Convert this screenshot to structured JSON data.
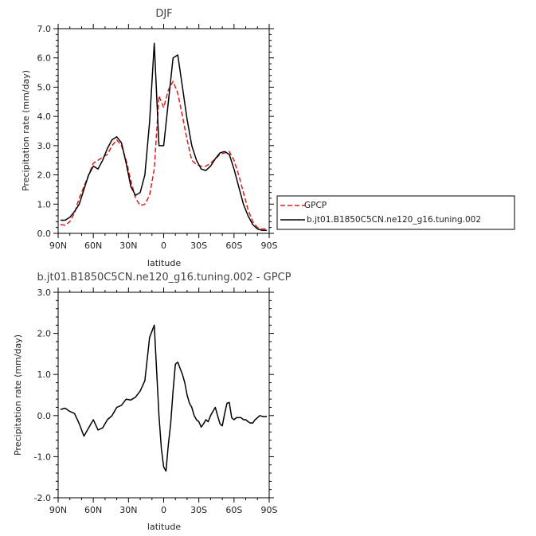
{
  "chart_data": [
    {
      "type": "line",
      "title": "DJF",
      "xlabel": "latitude",
      "ylabel": "Precipitation rate (mm/day)",
      "xlim": [
        90,
        -90
      ],
      "ylim": [
        0,
        7
      ],
      "xticks": [
        90,
        60,
        30,
        0,
        -30,
        -60,
        -90
      ],
      "xtick_labels": [
        "90N",
        "60N",
        "30N",
        "0",
        "30S",
        "60S",
        "90S"
      ],
      "yticks": [
        0,
        1,
        2,
        3,
        4,
        5,
        6,
        7
      ],
      "ytick_labels": [
        "0.0",
        "1.0",
        "2.0",
        "3.0",
        "4.0",
        "5.0",
        "6.0",
        "7.0"
      ],
      "legend_position": "right",
      "series": [
        {
          "name": "GPCP",
          "color": "#dd1c1c",
          "dash": "dashed",
          "x": [
            88,
            84,
            80,
            76,
            72,
            68,
            64,
            60,
            56,
            52,
            48,
            44,
            40,
            36,
            32,
            28,
            24,
            20,
            16,
            12,
            8,
            4,
            0,
            -4,
            -8,
            -12,
            -16,
            -20,
            -24,
            -28,
            -32,
            -36,
            -40,
            -44,
            -48,
            -52,
            -56,
            -60,
            -64,
            -68,
            -72,
            -76,
            -80,
            -84,
            -88
          ],
          "y": [
            0.3,
            0.28,
            0.4,
            0.7,
            1.2,
            1.6,
            2.0,
            2.4,
            2.5,
            2.6,
            2.7,
            3.0,
            3.2,
            3.0,
            2.5,
            1.8,
            1.2,
            0.95,
            1.0,
            1.3,
            2.2,
            4.7,
            4.3,
            4.9,
            5.2,
            4.8,
            4.0,
            3.2,
            2.5,
            2.35,
            2.3,
            2.3,
            2.4,
            2.55,
            2.7,
            2.75,
            2.8,
            2.5,
            2.0,
            1.4,
            0.8,
            0.4,
            0.2,
            0.15,
            0.15
          ]
        },
        {
          "name": "b.jt01.B1850C5CN.ne120_g16.tuning.002",
          "color": "#000000",
          "dash": "solid",
          "x": [
            88,
            84,
            80,
            76,
            72,
            68,
            64,
            60,
            56,
            52,
            48,
            44,
            40,
            36,
            32,
            28,
            24,
            20,
            16,
            12,
            8,
            4,
            0,
            -4,
            -8,
            -12,
            -16,
            -20,
            -24,
            -28,
            -32,
            -36,
            -40,
            -44,
            -48,
            -52,
            -56,
            -60,
            -64,
            -68,
            -72,
            -76,
            -80,
            -84,
            -88
          ],
          "y": [
            0.45,
            0.45,
            0.55,
            0.75,
            1.0,
            1.5,
            2.0,
            2.3,
            2.2,
            2.5,
            2.9,
            3.2,
            3.3,
            3.1,
            2.4,
            1.6,
            1.3,
            1.4,
            2.0,
            3.8,
            6.5,
            3.0,
            3.0,
            4.5,
            6.0,
            6.1,
            5.0,
            3.9,
            3.0,
            2.5,
            2.2,
            2.15,
            2.3,
            2.55,
            2.75,
            2.8,
            2.7,
            2.2,
            1.6,
            1.0,
            0.6,
            0.3,
            0.15,
            0.1,
            0.1
          ]
        }
      ]
    },
    {
      "type": "line",
      "title": "b.jt01.B1850C5CN.ne120_g16.tuning.002 - GPCP",
      "xlabel": "latitude",
      "ylabel": "Precipitation rate (mm/day)",
      "xlim": [
        90,
        -90
      ],
      "ylim": [
        -2,
        3
      ],
      "xticks": [
        90,
        60,
        30,
        0,
        -30,
        -60,
        -90
      ],
      "xtick_labels": [
        "90N",
        "60N",
        "30N",
        "0",
        "30S",
        "60S",
        "90S"
      ],
      "yticks": [
        -2,
        -1,
        0,
        1,
        2,
        3
      ],
      "ytick_labels": [
        "-2.0",
        "-1.0",
        "0.0",
        "1.0",
        "2.0",
        "3.0"
      ],
      "series": [
        {
          "color": "#000000",
          "dash": "solid",
          "x": [
            88,
            84,
            80,
            76,
            72,
            68,
            64,
            60,
            56,
            52,
            48,
            44,
            40,
            36,
            32,
            28,
            24,
            20,
            16,
            12,
            8,
            4,
            2,
            0,
            -2,
            -4,
            -6,
            -8,
            -10,
            -12,
            -14,
            -16,
            -18,
            -20,
            -22,
            -24,
            -26,
            -28,
            -30,
            -32,
            -34,
            -36,
            -38,
            -40,
            -42,
            -44,
            -46,
            -48,
            -50,
            -52,
            -54,
            -56,
            -58,
            -60,
            -62,
            -64,
            -66,
            -68,
            -70,
            -72,
            -74,
            -76,
            -78,
            -80,
            -82,
            -84,
            -86,
            -88
          ],
          "y": [
            0.15,
            0.18,
            0.1,
            0.05,
            -0.2,
            -0.5,
            -0.3,
            -0.1,
            -0.35,
            -0.3,
            -0.1,
            0.0,
            0.2,
            0.25,
            0.4,
            0.38,
            0.45,
            0.6,
            0.85,
            1.9,
            2.2,
            0.0,
            -0.8,
            -1.25,
            -1.35,
            -0.7,
            -0.2,
            0.6,
            1.25,
            1.3,
            1.15,
            1.0,
            0.8,
            0.5,
            0.3,
            0.2,
            0.0,
            -0.1,
            -0.15,
            -0.28,
            -0.2,
            -0.1,
            -0.15,
            0.0,
            0.1,
            0.2,
            0.0,
            -0.2,
            -0.25,
            0.05,
            0.3,
            0.32,
            -0.05,
            -0.1,
            -0.05,
            -0.05,
            -0.05,
            -0.1,
            -0.1,
            -0.15,
            -0.18,
            -0.18,
            -0.1,
            -0.05,
            0.0,
            -0.02,
            -0.03,
            -0.02
          ]
        }
      ]
    }
  ]
}
